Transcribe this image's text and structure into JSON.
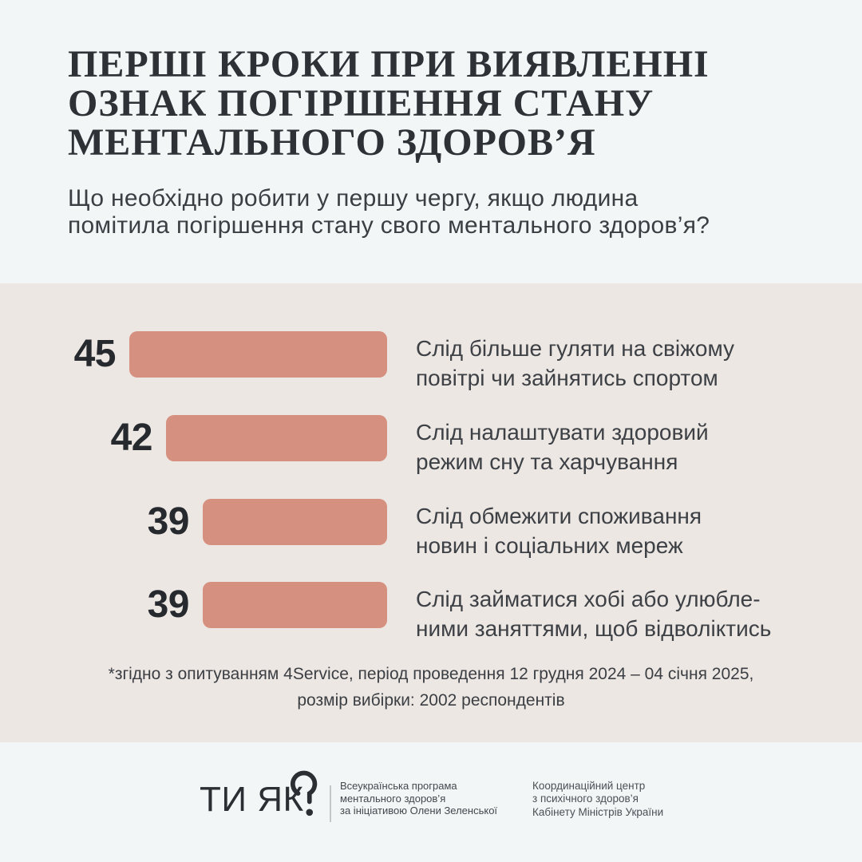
{
  "header": {
    "title_lines": [
      "ПЕРШІ КРОКИ ПРИ ВИЯВЛЕННІ",
      "ОЗНАК ПОГІРШЕННЯ СТАНУ",
      "МЕНТАЛЬНОГО ЗДОРОВ’Я"
    ],
    "subtitle_lines": [
      "Що необхідно робити у першу чергу, якщо людина",
      "помітила погіршення стану свого ментального здоров’я?"
    ]
  },
  "chart_data": {
    "type": "bar",
    "orientation": "horizontal",
    "title": "ПЕРШІ КРОКИ ПРИ ВИЯВЛЕННІ ОЗНАК ПОГІРШЕННЯ СТАНУ МЕНТАЛЬНОГО ЗДОРОВ’Я",
    "question": "Що необхідно робити у першу чергу, якщо людина помітила погіршення стану свого ментального здоров’я?",
    "categories": [
      "Слід більше гуляти на свіжому повітрі чи зайнятись спортом",
      "Слід налаштувати здоровий режим сну та харчування",
      "Слід обмежити споживання новин і соціальних мереж",
      "Слід займатися хобі або улюбленими заняттями, щоб відволіктись"
    ],
    "values": [
      45,
      42,
      39,
      39
    ],
    "value_labels_position": "left-of-bar",
    "bars_right_aligned": true,
    "grid": false,
    "legend": "none",
    "bar_color": "#d5907f"
  },
  "chart": {
    "rows": [
      {
        "value": "45",
        "label_lines": [
          "Слід більше гуляти на свіжому",
          "повітрі чи зайнятись спортом"
        ]
      },
      {
        "value": "42",
        "label_lines": [
          "Слід налаштувати здоровий",
          "режим сну та харчування"
        ]
      },
      {
        "value": "39",
        "label_lines": [
          "Слід обмежити споживання",
          "новин і соціальних мереж"
        ]
      },
      {
        "value": "39",
        "label_lines": [
          "Слід займатися хобі або улюбле-",
          "ними заняттями, щоб відволіктись"
        ]
      }
    ]
  },
  "footnote": {
    "line1": "*згідно з опитуванням 4Service, період проведення 12 грудня 2024 – 04 січня 2025,",
    "line2": "розмір вибірки: 2002 респондентів"
  },
  "footer": {
    "logo_text": "ТИ ЯК",
    "program_lines": [
      "Всеукраїнська програма",
      "ментального здоров’я",
      "за ініціативою Олени Зеленської"
    ],
    "gov_lines": [
      "Координаційний центр",
      "з психічного здоров’я",
      "Кабінету Міністрів України"
    ]
  },
  "colors": {
    "background_top": "#f2f6f7",
    "background_middle": "#ece7e3",
    "background_bottom": "#f2f6f7",
    "bar": "#d5907f",
    "title_text": "#2e3237"
  }
}
